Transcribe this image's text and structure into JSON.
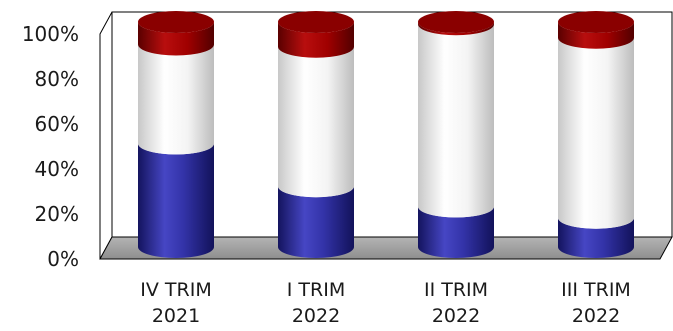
{
  "chart_data": {
    "type": "bar",
    "stacked": true,
    "style": "3d-cylinder",
    "title": "",
    "xlabel": "",
    "ylabel": "",
    "categories": [
      [
        "IV TRIM",
        "2021"
      ],
      [
        "I TRIM",
        "2022"
      ],
      [
        "II TRIM",
        "2022"
      ],
      [
        "III TRIM",
        "2022"
      ]
    ],
    "series": [
      {
        "color": "#2b2b9a",
        "values": [
          46,
          27,
          18,
          13
        ]
      },
      {
        "color": "#f2f2f2",
        "values": [
          44,
          62,
          81,
          80
        ]
      },
      {
        "color": "#9a0000",
        "values": [
          10,
          11,
          1,
          7
        ]
      }
    ],
    "ylim": [
      0,
      100
    ],
    "yticks": [
      "0%",
      "20%",
      "40%",
      "60%",
      "80%",
      "100%"
    ],
    "grid": false,
    "legend": "none"
  }
}
